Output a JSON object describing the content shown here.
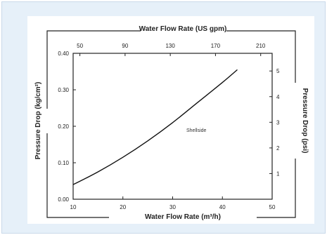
{
  "chart_data": {
    "type": "line",
    "x_bottom": {
      "label": "Water Flow Rate (m³/h)",
      "range": [
        10,
        50
      ],
      "ticks": [
        "10",
        "20",
        "30",
        "40",
        "50"
      ]
    },
    "x_top": {
      "label": "Water Flow Rate (US gpm)",
      "range": [
        44,
        220
      ],
      "ticks": [
        "50",
        "90",
        "130",
        "170",
        "210"
      ]
    },
    "y_left": {
      "label": "Pressure Drop (kg/cm²)",
      "range": [
        0,
        0.4
      ],
      "ticks": [
        "0.00",
        "0.10",
        "0.20",
        "0.30",
        "0.40"
      ]
    },
    "y_right": {
      "label": "Pressure Drop (psi)",
      "ticks": [
        "1",
        "2",
        "3",
        "4",
        "5"
      ]
    },
    "series": [
      {
        "x": [
          10,
          15,
          20,
          25,
          30,
          35,
          40,
          43
        ],
        "y": [
          0.04,
          0.075,
          0.115,
          0.16,
          0.21,
          0.265,
          0.32,
          0.355
        ]
      }
    ],
    "annotation": "Shellside",
    "grid": false
  }
}
